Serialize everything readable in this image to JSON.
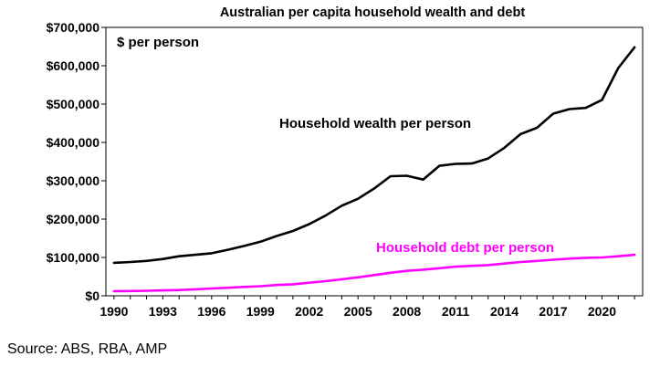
{
  "chart_data": {
    "type": "line",
    "title": "Australian per capita household wealth and debt",
    "unit_label": "$ per person",
    "xlim": [
      1989.5,
      2022.5
    ],
    "ylim": [
      0,
      700000
    ],
    "y_ticks": [
      0,
      100000,
      200000,
      300000,
      400000,
      500000,
      600000,
      700000
    ],
    "y_tick_labels": [
      "$0",
      "$100,000",
      "$200,000",
      "$300,000",
      "$400,000",
      "$500,000",
      "$600,000",
      "$700,000"
    ],
    "x_tick_labels": [
      "1990",
      "1993",
      "1996",
      "1999",
      "2002",
      "2005",
      "2008",
      "2011",
      "2014",
      "2017",
      "2020"
    ],
    "x_tick_values": [
      1990,
      1993,
      1996,
      1999,
      2002,
      2005,
      2008,
      2011,
      2014,
      2017,
      2020
    ],
    "grid": false,
    "x": [
      1990,
      1991,
      1992,
      1993,
      1994,
      1995,
      1996,
      1997,
      1998,
      1999,
      2000,
      2001,
      2002,
      2003,
      2004,
      2005,
      2006,
      2007,
      2008,
      2009,
      2010,
      2011,
      2012,
      2013,
      2014,
      2015,
      2016,
      2017,
      2018,
      2019,
      2020,
      2021,
      2022
    ],
    "series": [
      {
        "name": "Household wealth per person",
        "color": "#000000",
        "values": [
          86000,
          88000,
          91000,
          96000,
          103000,
          107000,
          111000,
          120000,
          130000,
          141000,
          156000,
          169000,
          187000,
          209000,
          235000,
          253000,
          280000,
          312000,
          313000,
          303000,
          339000,
          344000,
          345000,
          358000,
          386000,
          422000,
          438000,
          475000,
          487000,
          490000,
          511000,
          594000,
          648000
        ]
      },
      {
        "name": "Household debt per person",
        "color": "#ff00ff",
        "values": [
          12000,
          12500,
          13000,
          14000,
          15000,
          17000,
          19000,
          21000,
          23000,
          25000,
          28000,
          30000,
          34000,
          38000,
          43000,
          48000,
          54000,
          60000,
          65000,
          68000,
          72000,
          76000,
          78000,
          80000,
          84000,
          88000,
          91000,
          94000,
          97000,
          99000,
          100000,
          103000,
          107000
        ]
      }
    ]
  },
  "source": "Source: ABS, RBA, AMP"
}
